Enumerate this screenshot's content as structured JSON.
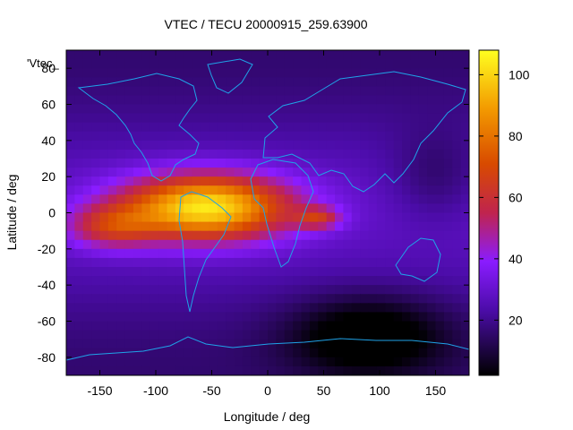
{
  "chart_data": {
    "type": "heatmap",
    "title": "VTEC / TECU 20000915_259.63900",
    "xlabel": "Longitude / deg",
    "ylabel": "Latitude / deg",
    "key_label": "'Vtec_",
    "xlim": [
      -180,
      180
    ],
    "ylim": [
      -90,
      90
    ],
    "x_ticks": [
      -150,
      -100,
      -50,
      0,
      50,
      100,
      150
    ],
    "y_ticks": [
      -80,
      -60,
      -40,
      -20,
      0,
      20,
      40,
      60,
      80
    ],
    "colorbar": {
      "min": 2,
      "max": 108,
      "ticks": [
        20,
        40,
        60,
        80,
        100
      ],
      "palette": "black-blue-purple-red-orange-yellow"
    },
    "grid": false,
    "data_summary": {
      "peak_vtec": 102,
      "peak_location": {
        "lon": -55,
        "lat": 3
      },
      "background_vtec": 22,
      "low_region_vtec": 6,
      "low_region_location": {
        "lon": 90,
        "lat": -68
      }
    },
    "overlay": "coastlines"
  }
}
